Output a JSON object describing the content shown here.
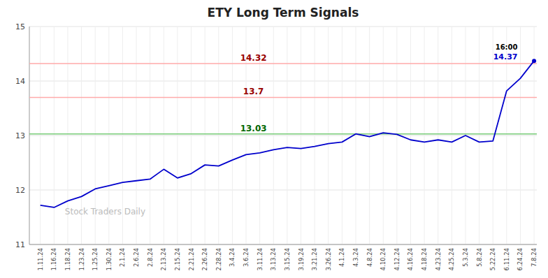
{
  "chart_data": {
    "type": "line",
    "title": "ETY Long Term Signals",
    "categories": [
      "1.11.24",
      "1.16.24",
      "1.18.24",
      "1.23.24",
      "1.25.24",
      "1.30.24",
      "2.1.24",
      "2.6.24",
      "2.8.24",
      "2.13.24",
      "2.15.24",
      "2.21.24",
      "2.26.24",
      "2.28.24",
      "3.4.24",
      "3.6.24",
      "3.11.24",
      "3.13.24",
      "3.15.24",
      "3.19.24",
      "3.21.24",
      "3.26.24",
      "4.1.24",
      "4.3.24",
      "4.8.24",
      "4.10.24",
      "4.12.24",
      "4.16.24",
      "4.18.24",
      "4.23.24",
      "4.25.24",
      "5.3.24",
      "5.8.24",
      "5.22.24",
      "6.11.24",
      "6.24.24",
      "7.8.24"
    ],
    "values": [
      11.72,
      11.68,
      11.8,
      11.88,
      12.02,
      12.08,
      12.14,
      12.17,
      12.2,
      12.38,
      12.22,
      12.3,
      12.46,
      12.44,
      12.55,
      12.65,
      12.68,
      12.74,
      12.78,
      12.76,
      12.8,
      12.85,
      12.88,
      13.03,
      12.98,
      13.05,
      13.02,
      12.92,
      12.88,
      12.92,
      12.88,
      13.0,
      12.88,
      12.9,
      13.82,
      14.05,
      14.37
    ],
    "color": "#0000cc",
    "marker": "end",
    "hlines": [
      {
        "value": 14.32,
        "color": "#ffaaaa",
        "label_color": "#990000"
      },
      {
        "value": 13.7,
        "color": "#ffaaaa",
        "label_color": "#990000"
      },
      {
        "value": 13.03,
        "color": "#77cc77",
        "label_color": "#006600"
      }
    ],
    "annotations": [
      {
        "text": "16:00",
        "color": "#000000"
      },
      {
        "text": "Stock Traders Daily",
        "color": "#bbbbbb"
      }
    ],
    "ylim": [
      11.0,
      15.0
    ],
    "yticks": [
      11,
      12,
      13,
      14,
      15
    ],
    "grid": true
  }
}
